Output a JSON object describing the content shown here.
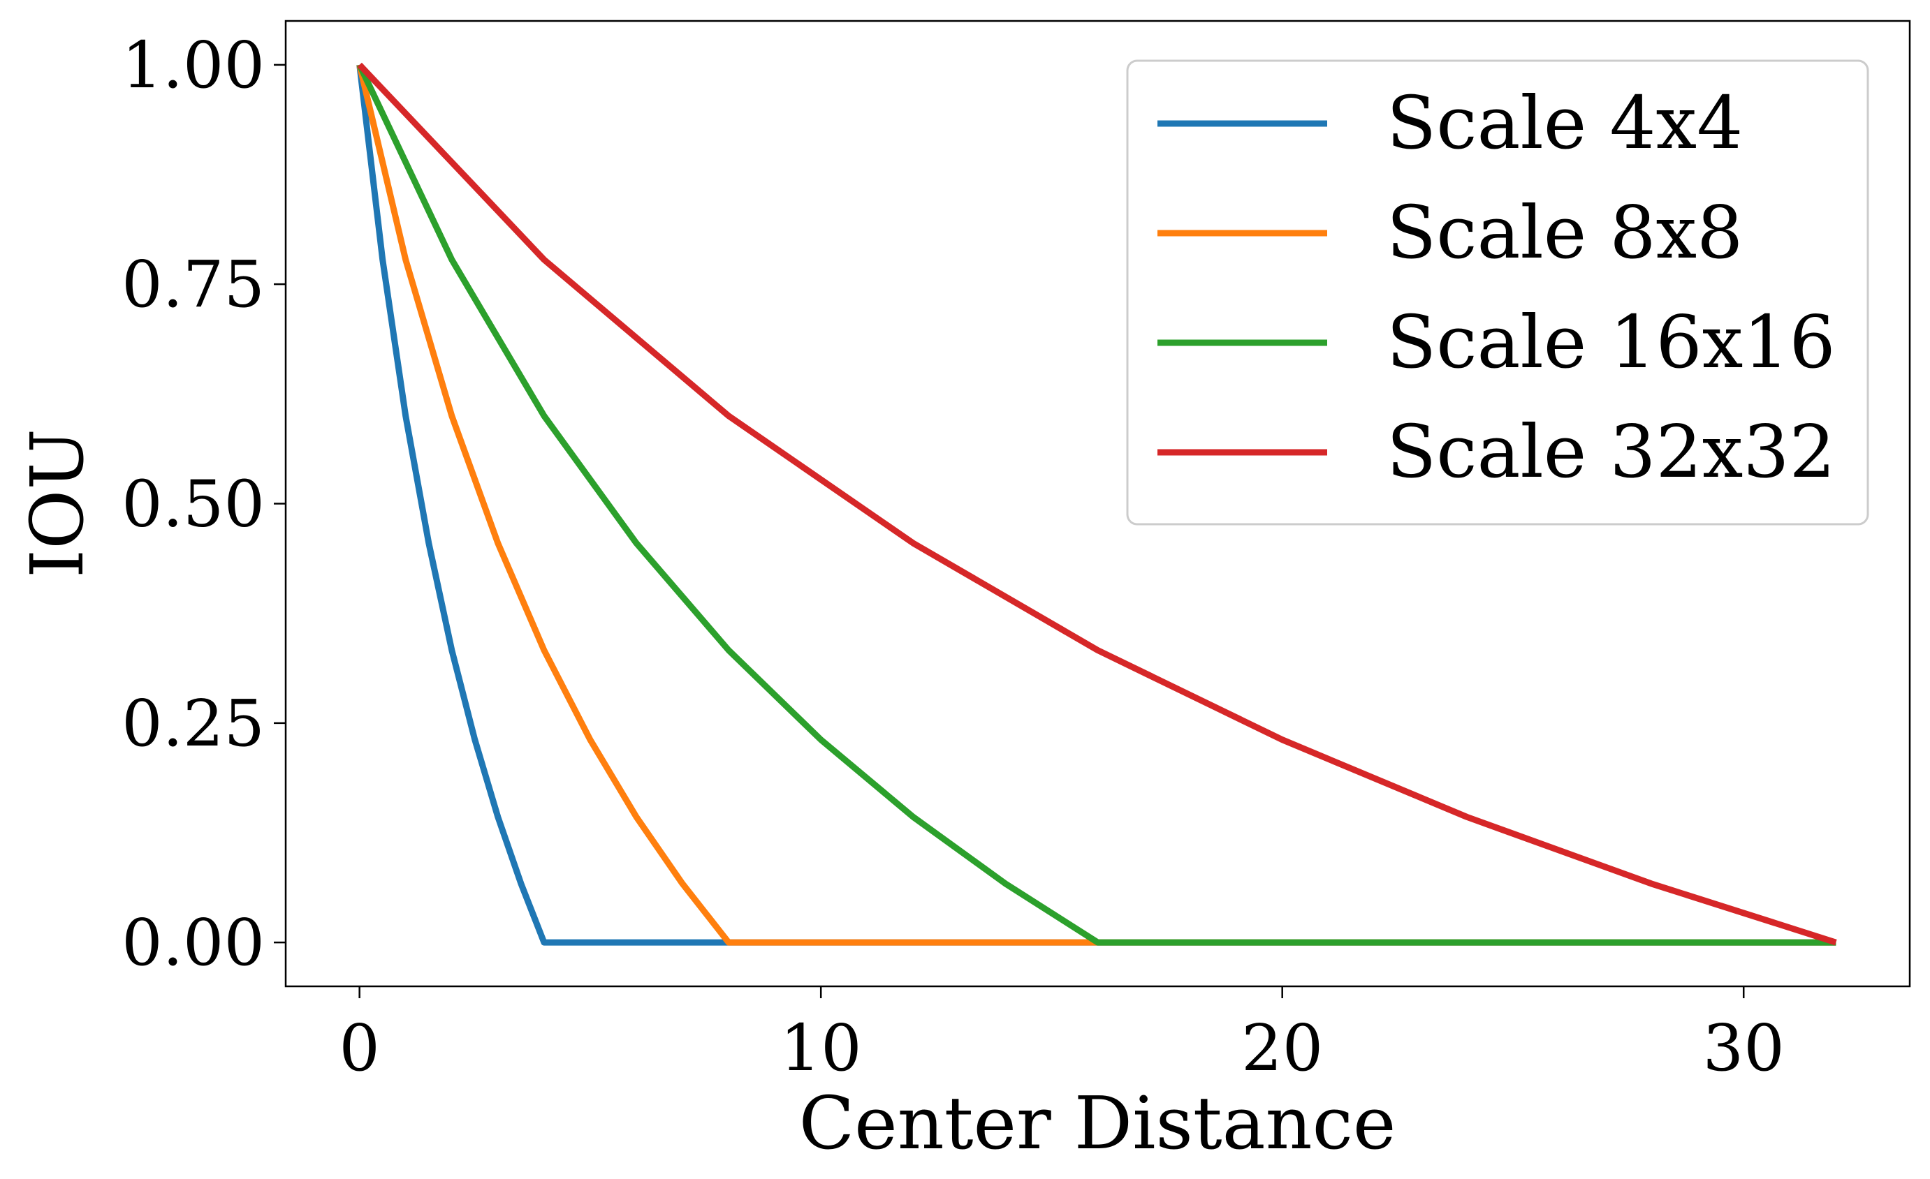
{
  "chart_data": {
    "type": "line",
    "title": "",
    "xlabel": "Center Distance",
    "ylabel": "IOU",
    "xlim": [
      -1.6,
      33.6
    ],
    "ylim": [
      -0.05,
      1.05
    ],
    "xticks": [
      0,
      10,
      20,
      30
    ],
    "xtick_labels": [
      "0",
      "10",
      "20",
      "30"
    ],
    "yticks": [
      0,
      0.25,
      0.5,
      0.75,
      1.0
    ],
    "ytick_labels": [
      "0.00",
      "0.25",
      "0.50",
      "0.75",
      "1.00"
    ],
    "grid": false,
    "legend_position": "top-right",
    "series": [
      {
        "name": "Scale 4x4",
        "color": "#1f77b4",
        "x": [
          0,
          0.5,
          1,
          1.5,
          2,
          2.5,
          3,
          3.5,
          4,
          8,
          16,
          32
        ],
        "y": [
          1.0,
          0.778,
          0.6,
          0.455,
          0.333,
          0.231,
          0.143,
          0.067,
          0.0,
          0.0,
          0.0,
          0.0
        ]
      },
      {
        "name": "Scale 8x8",
        "color": "#ff7f0e",
        "x": [
          0,
          1,
          2,
          3,
          4,
          5,
          6,
          7,
          8,
          16,
          32
        ],
        "y": [
          1.0,
          0.778,
          0.6,
          0.455,
          0.333,
          0.231,
          0.143,
          0.067,
          0.0,
          0.0,
          0.0
        ]
      },
      {
        "name": "Scale 16x16",
        "color": "#2ca02c",
        "x": [
          0,
          2,
          4,
          6,
          8,
          10,
          12,
          14,
          16,
          32
        ],
        "y": [
          1.0,
          0.778,
          0.6,
          0.455,
          0.333,
          0.231,
          0.143,
          0.067,
          0.0,
          0.0
        ]
      },
      {
        "name": "Scale 32x32",
        "color": "#d62728",
        "x": [
          0,
          4,
          8,
          12,
          16,
          20,
          24,
          28,
          32
        ],
        "y": [
          1.0,
          0.778,
          0.6,
          0.455,
          0.333,
          0.231,
          0.143,
          0.067,
          0.0
        ]
      }
    ]
  }
}
